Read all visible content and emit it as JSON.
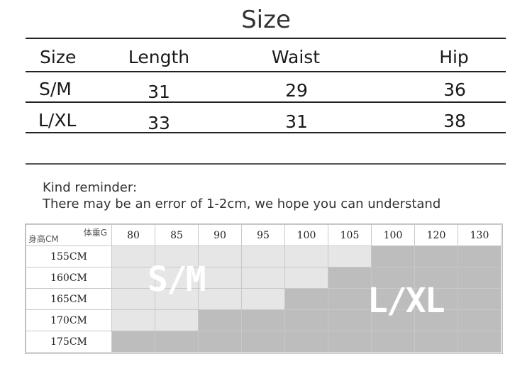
{
  "title": "Size",
  "size_table": {
    "headers": [
      "Size",
      "Length",
      "Waist",
      "Hip"
    ],
    "rows": [
      [
        "S/M",
        "31",
        "29",
        "36"
      ],
      [
        "L/XL",
        "33",
        "31",
        "38"
      ]
    ]
  },
  "reminder": {
    "line1": "Kind reminder:",
    "line2": "There may be an error of 1-2cm, we hope you can understand"
  },
  "weight_chart": {
    "corner_weight": "体重G",
    "corner_height": "身高CM",
    "weights": [
      "80",
      "85",
      "90",
      "95",
      "100",
      "105",
      "100",
      "120",
      "130"
    ],
    "heights": [
      "155CM",
      "160CM",
      "165CM",
      "170CM",
      "175CM"
    ],
    "fill": [
      [
        "S/M",
        "S/M",
        "S/M",
        "S/M",
        "S/M",
        "S/M",
        "L/XL",
        "L/XL",
        "L/XL"
      ],
      [
        "S/M",
        "S/M",
        "S/M",
        "S/M",
        "S/M",
        "L/XL",
        "L/XL",
        "L/XL",
        "L/XL"
      ],
      [
        "S/M",
        "S/M",
        "S/M",
        "S/M",
        "L/XL",
        "L/XL",
        "L/XL",
        "L/XL",
        "L/XL"
      ],
      [
        "S/M",
        "S/M",
        "L/XL",
        "L/XL",
        "L/XL",
        "L/XL",
        "L/XL",
        "L/XL",
        "L/XL"
      ],
      [
        "L/XL",
        "L/XL",
        "L/XL",
        "L/XL",
        "L/XL",
        "L/XL",
        "L/XL",
        "L/XL",
        "L/XL"
      ]
    ],
    "label_sm": "S/M",
    "label_lxl": "L/XL",
    "colors": {
      "sm": "#e6e6e6",
      "lxl": "#bdbdbd"
    }
  }
}
